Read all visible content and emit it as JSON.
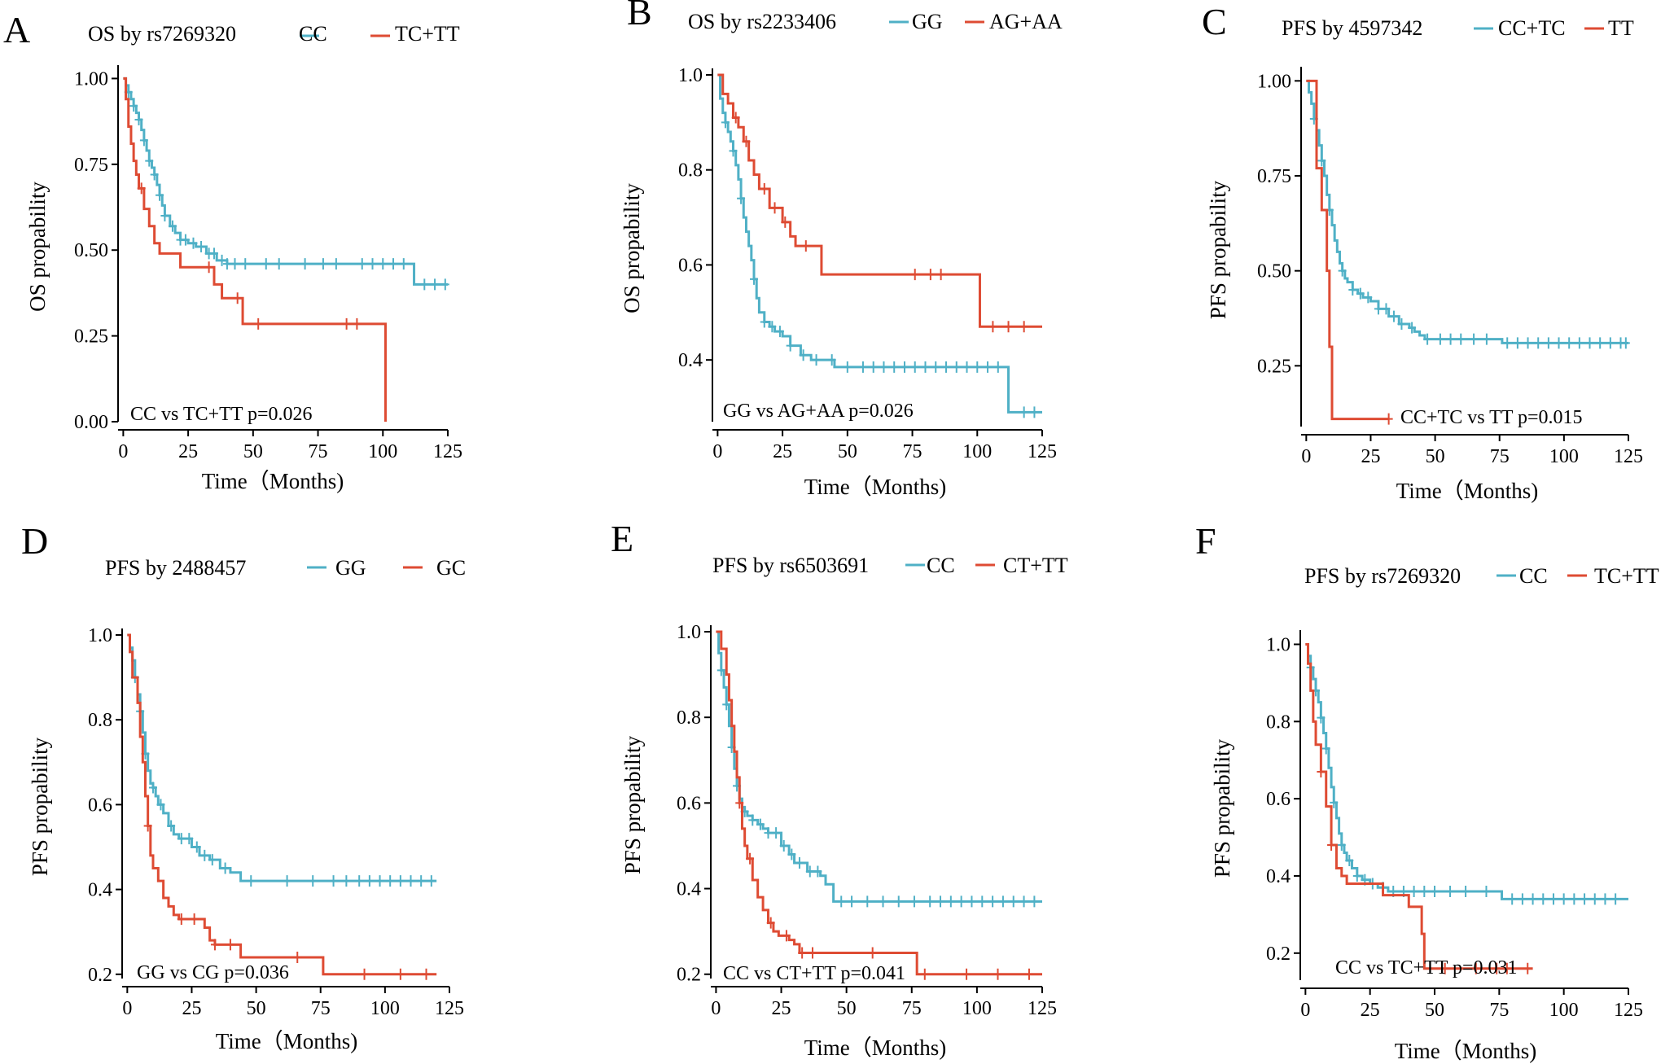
{
  "colors": {
    "blue": "#4fb0c6",
    "red": "#de4b33"
  },
  "chart_data": [
    {
      "type": "line",
      "panel": "A",
      "title": "OS  by rs7269320",
      "xlabel": "Time（Months)",
      "ylabel": "OS propability",
      "xlim": [
        -2,
        125
      ],
      "ylim": [
        0,
        1.02
      ],
      "xticks": [
        0,
        25,
        50,
        75,
        100,
        125
      ],
      "yticks": [
        0,
        0.25,
        0.5,
        0.75,
        1.0
      ],
      "ytick_labels": [
        "0.00",
        "0.25",
        "0.50",
        "0.75",
        "1.00"
      ],
      "annotation": "CC vs TC+TT p=0.026",
      "series": [
        {
          "name": "CC",
          "color": "blue",
          "x": [
            0,
            1,
            2,
            3,
            4,
            5,
            6,
            7,
            8,
            9,
            10,
            11,
            12,
            13,
            14,
            15,
            16,
            18,
            20,
            22,
            25,
            28,
            32,
            36,
            40,
            45,
            50,
            60,
            80,
            100,
            112,
            125
          ],
          "y": [
            1.0,
            0.98,
            0.96,
            0.94,
            0.92,
            0.9,
            0.88,
            0.85,
            0.82,
            0.79,
            0.76,
            0.74,
            0.72,
            0.69,
            0.66,
            0.63,
            0.6,
            0.57,
            0.55,
            0.53,
            0.52,
            0.51,
            0.49,
            0.47,
            0.46,
            0.46,
            0.46,
            0.46,
            0.46,
            0.46,
            0.4,
            0.4
          ],
          "censor": [
            2,
            4,
            6,
            8,
            10,
            12,
            14,
            16,
            19,
            22,
            24,
            27,
            30,
            33,
            35,
            38,
            40,
            43,
            47,
            55,
            60,
            70,
            77,
            82,
            92,
            96,
            100,
            104,
            108,
            116,
            120,
            124
          ]
        },
        {
          "name": "TC+TT",
          "color": "red",
          "x": [
            0,
            1,
            2,
            3,
            4,
            5,
            6,
            8,
            10,
            12,
            14,
            18,
            22,
            30,
            35,
            38,
            46,
            55,
            80,
            100,
            101
          ],
          "y": [
            1.0,
            0.94,
            0.86,
            0.81,
            0.76,
            0.72,
            0.68,
            0.62,
            0.57,
            0.52,
            0.49,
            0.49,
            0.45,
            0.45,
            0.4,
            0.36,
            0.285,
            0.285,
            0.285,
            0.285,
            0.0
          ],
          "censor": [
            7,
            33,
            44,
            52,
            86,
            90
          ]
        }
      ]
    },
    {
      "type": "line",
      "panel": "B",
      "title": "OS  by rs2233406",
      "xlabel": "Time（Months)",
      "ylabel": "OS propability",
      "xlim": [
        -2,
        125
      ],
      "ylim": [
        0.27,
        1.0
      ],
      "xticks": [
        0,
        25,
        50,
        75,
        100,
        125
      ],
      "yticks": [
        0.4,
        0.6,
        0.8,
        1.0
      ],
      "ytick_labels": [
        "0.4",
        "0.6",
        "0.8",
        "1.0"
      ],
      "annotation": "GG  vs AG+AA p=0.026",
      "series": [
        {
          "name": "GG",
          "color": "blue",
          "x": [
            0,
            1,
            2,
            3,
            4,
            5,
            6,
            7,
            8,
            9,
            10,
            11,
            12,
            13,
            14,
            15,
            16,
            18,
            20,
            22,
            25,
            28,
            32,
            36,
            40,
            45,
            60,
            80,
            100,
            112,
            125
          ],
          "y": [
            1.0,
            0.95,
            0.92,
            0.9,
            0.88,
            0.86,
            0.84,
            0.81,
            0.78,
            0.74,
            0.7,
            0.67,
            0.64,
            0.61,
            0.57,
            0.53,
            0.5,
            0.48,
            0.47,
            0.46,
            0.45,
            0.43,
            0.41,
            0.4,
            0.4,
            0.385,
            0.385,
            0.385,
            0.385,
            0.29,
            0.29
          ],
          "censor": [
            3,
            6,
            9,
            14,
            18,
            21,
            24,
            28,
            33,
            38,
            44,
            50,
            56,
            60,
            64,
            68,
            72,
            76,
            80,
            84,
            88,
            92,
            96,
            100,
            104,
            108,
            118,
            122
          ]
        },
        {
          "name": "AG+AA",
          "color": "red",
          "x": [
            0,
            2,
            4,
            6,
            8,
            10,
            12,
            14,
            16,
            20,
            25,
            28,
            30,
            40,
            60,
            80,
            100,
            101,
            125
          ],
          "y": [
            1.0,
            0.96,
            0.94,
            0.91,
            0.89,
            0.86,
            0.82,
            0.79,
            0.76,
            0.72,
            0.69,
            0.66,
            0.64,
            0.58,
            0.58,
            0.58,
            0.58,
            0.47,
            0.47
          ],
          "censor": [
            7,
            11,
            18,
            22,
            26,
            34,
            76,
            82,
            86,
            106,
            112,
            118
          ]
        }
      ]
    },
    {
      "type": "line",
      "panel": "C",
      "title": "PFS by  4597342",
      "xlabel": "Time（Months)",
      "ylabel": "PFS propability",
      "xlim": [
        -2,
        125
      ],
      "ylim": [
        0.09,
        1.02
      ],
      "xticks": [
        0,
        25,
        50,
        75,
        100,
        125
      ],
      "yticks": [
        0.25,
        0.5,
        0.75,
        1.0
      ],
      "ytick_labels": [
        "0.25",
        "0.50",
        "0.75",
        "1.00"
      ],
      "annotation": "CC+TC vs TT  p=0.015",
      "series": [
        {
          "name": "CC+TC",
          "color": "blue",
          "x": [
            0,
            1,
            2,
            3,
            4,
            5,
            6,
            7,
            8,
            9,
            10,
            11,
            12,
            13,
            14,
            15,
            16,
            18,
            20,
            22,
            25,
            28,
            32,
            36,
            40,
            42,
            44,
            46,
            50,
            60,
            76,
            100,
            125
          ],
          "y": [
            1.0,
            0.97,
            0.94,
            0.9,
            0.87,
            0.83,
            0.79,
            0.75,
            0.7,
            0.66,
            0.62,
            0.58,
            0.55,
            0.52,
            0.5,
            0.48,
            0.47,
            0.45,
            0.44,
            0.43,
            0.42,
            0.4,
            0.38,
            0.36,
            0.35,
            0.34,
            0.33,
            0.32,
            0.32,
            0.32,
            0.31,
            0.31,
            0.31
          ],
          "censor": [
            3,
            6,
            9,
            14,
            18,
            21,
            24,
            28,
            31,
            34,
            37,
            41,
            47,
            52,
            56,
            60,
            65,
            70,
            78,
            82,
            86,
            90,
            94,
            98,
            102,
            106,
            110,
            114,
            118,
            122,
            124
          ]
        },
        {
          "name": "TT",
          "color": "red",
          "x": [
            0,
            3,
            4,
            5,
            6,
            7,
            8,
            9,
            10,
            11,
            20,
            32
          ],
          "y": [
            1.0,
            1.0,
            0.77,
            0.77,
            0.66,
            0.66,
            0.5,
            0.3,
            0.11,
            0.11,
            0.11,
            0.11
          ],
          "censor": [
            32
          ]
        }
      ]
    },
    {
      "type": "line",
      "panel": "D",
      "title": "PFS by  2488457",
      "xlabel": "Time（Months)",
      "ylabel": "PFS propability",
      "xlim": [
        -2,
        125
      ],
      "ylim": [
        0.19,
        1.0
      ],
      "xticks": [
        0,
        25,
        50,
        75,
        100,
        125
      ],
      "yticks": [
        0.2,
        0.4,
        0.6,
        0.8,
        1.0
      ],
      "ytick_labels": [
        "0.2",
        "0.4",
        "0.6",
        "0.8",
        "1.0"
      ],
      "annotation": "GG vs CG p=0.036",
      "series": [
        {
          "name": "GG",
          "color": "blue",
          "x": [
            0,
            1,
            2,
            3,
            4,
            5,
            6,
            7,
            8,
            9,
            10,
            11,
            12,
            14,
            16,
            18,
            20,
            22,
            25,
            28,
            32,
            36,
            40,
            44,
            60,
            80,
            100,
            120
          ],
          "y": [
            1.0,
            0.97,
            0.94,
            0.9,
            0.86,
            0.82,
            0.77,
            0.72,
            0.68,
            0.65,
            0.64,
            0.62,
            0.6,
            0.58,
            0.55,
            0.53,
            0.52,
            0.52,
            0.5,
            0.48,
            0.47,
            0.45,
            0.44,
            0.42,
            0.42,
            0.42,
            0.42,
            0.42
          ],
          "censor": [
            3,
            5,
            7,
            10,
            13,
            17,
            21,
            24,
            27,
            30,
            33,
            38,
            48,
            62,
            72,
            80,
            85,
            90,
            94,
            98,
            102,
            106,
            110,
            114,
            118
          ]
        },
        {
          "name": "GC",
          "color": "red",
          "x": [
            0,
            1,
            2,
            4,
            5,
            6,
            7,
            8,
            9,
            10,
            12,
            14,
            16,
            18,
            20,
            25,
            30,
            32,
            34,
            40,
            44,
            50,
            60,
            75,
            76,
            100,
            120
          ],
          "y": [
            1.0,
            0.96,
            0.9,
            0.84,
            0.76,
            0.7,
            0.62,
            0.55,
            0.48,
            0.45,
            0.42,
            0.38,
            0.36,
            0.34,
            0.33,
            0.33,
            0.31,
            0.28,
            0.27,
            0.27,
            0.24,
            0.24,
            0.24,
            0.24,
            0.2,
            0.2,
            0.2
          ],
          "censor": [
            8,
            21,
            26,
            34,
            40,
            66,
            92,
            106,
            116
          ]
        }
      ]
    },
    {
      "type": "line",
      "panel": "E",
      "title": "PFS by rs6503691",
      "xlabel": "Time（Months)",
      "ylabel": "PFS propability",
      "xlim": [
        -2,
        125
      ],
      "ylim": [
        0.19,
        1.0
      ],
      "xticks": [
        0,
        25,
        50,
        75,
        100,
        125
      ],
      "yticks": [
        0.2,
        0.4,
        0.6,
        0.8,
        1.0
      ],
      "ytick_labels": [
        "0.2",
        "0.4",
        "0.6",
        "0.8",
        "1.0"
      ],
      "annotation": "CC vs CT+TT p=0.041",
      "series": [
        {
          "name": "CC",
          "color": "blue",
          "x": [
            0,
            1,
            2,
            3,
            4,
            5,
            6,
            7,
            8,
            9,
            10,
            11,
            12,
            14,
            16,
            18,
            20,
            25,
            28,
            30,
            35,
            40,
            42,
            45,
            60,
            80,
            100,
            125
          ],
          "y": [
            1.0,
            0.95,
            0.91,
            0.87,
            0.83,
            0.78,
            0.73,
            0.68,
            0.64,
            0.61,
            0.59,
            0.58,
            0.57,
            0.56,
            0.55,
            0.54,
            0.53,
            0.5,
            0.48,
            0.46,
            0.44,
            0.43,
            0.41,
            0.37,
            0.37,
            0.37,
            0.37,
            0.37
          ],
          "censor": [
            2,
            4,
            6,
            8,
            11,
            14,
            17,
            20,
            23,
            26,
            29,
            32,
            36,
            39,
            48,
            52,
            58,
            64,
            70,
            76,
            82,
            86,
            90,
            94,
            98,
            102,
            106,
            110,
            114,
            118,
            122
          ]
        },
        {
          "name": "CT+TT",
          "color": "red",
          "x": [
            0,
            2,
            4,
            5,
            6,
            7,
            8,
            9,
            10,
            11,
            12,
            14,
            16,
            18,
            20,
            22,
            24,
            28,
            30,
            32,
            35,
            40,
            60,
            76,
            77,
            100,
            125
          ],
          "y": [
            1.0,
            0.96,
            0.9,
            0.84,
            0.78,
            0.72,
            0.66,
            0.6,
            0.54,
            0.5,
            0.47,
            0.42,
            0.38,
            0.35,
            0.32,
            0.3,
            0.29,
            0.28,
            0.27,
            0.25,
            0.25,
            0.25,
            0.25,
            0.25,
            0.2,
            0.2,
            0.2
          ],
          "censor": [
            9,
            13,
            21,
            27,
            33,
            37,
            60,
            80,
            96,
            108,
            120
          ]
        }
      ]
    },
    {
      "type": "line",
      "panel": "F",
      "title": "PFS by rs7269320",
      "xlabel": "Time（Months)",
      "ylabel": "PFS propability",
      "xlim": [
        -2,
        125
      ],
      "ylim": [
        0.13,
        1.02
      ],
      "xticks": [
        0,
        25,
        50,
        75,
        100,
        125
      ],
      "yticks": [
        0.2,
        0.4,
        0.6,
        0.8,
        1.0
      ],
      "ytick_labels": [
        "0.2",
        "0.4",
        "0.6",
        "0.8",
        "1.0"
      ],
      "annotation": "CC vs TC+TT p=0.031",
      "series": [
        {
          "name": "CC",
          "color": "blue",
          "x": [
            0,
            1,
            2,
            3,
            4,
            5,
            6,
            7,
            8,
            9,
            10,
            11,
            12,
            13,
            14,
            15,
            16,
            18,
            20,
            22,
            25,
            28,
            32,
            36,
            40,
            45,
            60,
            76,
            100,
            125
          ],
          "y": [
            1.0,
            0.97,
            0.94,
            0.91,
            0.88,
            0.85,
            0.81,
            0.77,
            0.73,
            0.68,
            0.63,
            0.59,
            0.55,
            0.51,
            0.48,
            0.46,
            0.44,
            0.42,
            0.4,
            0.39,
            0.38,
            0.37,
            0.36,
            0.36,
            0.36,
            0.36,
            0.36,
            0.34,
            0.34,
            0.34
          ],
          "censor": [
            2,
            4,
            6,
            8,
            11,
            14,
            17,
            20,
            23,
            26,
            30,
            34,
            38,
            42,
            46,
            50,
            56,
            62,
            70,
            80,
            84,
            88,
            92,
            96,
            100,
            104,
            108,
            112,
            116,
            120
          ]
        },
        {
          "name": "TC+TT",
          "color": "red",
          "x": [
            0,
            1,
            2,
            3,
            4,
            6,
            8,
            10,
            12,
            14,
            16,
            20,
            25,
            30,
            35,
            40,
            45,
            46,
            60,
            88
          ],
          "y": [
            1.0,
            0.95,
            0.88,
            0.8,
            0.74,
            0.67,
            0.58,
            0.48,
            0.42,
            0.4,
            0.38,
            0.38,
            0.38,
            0.35,
            0.35,
            0.32,
            0.25,
            0.16,
            0.16,
            0.16
          ],
          "censor": [
            6,
            10,
            54,
            66,
            74,
            78,
            86
          ]
        }
      ]
    }
  ]
}
